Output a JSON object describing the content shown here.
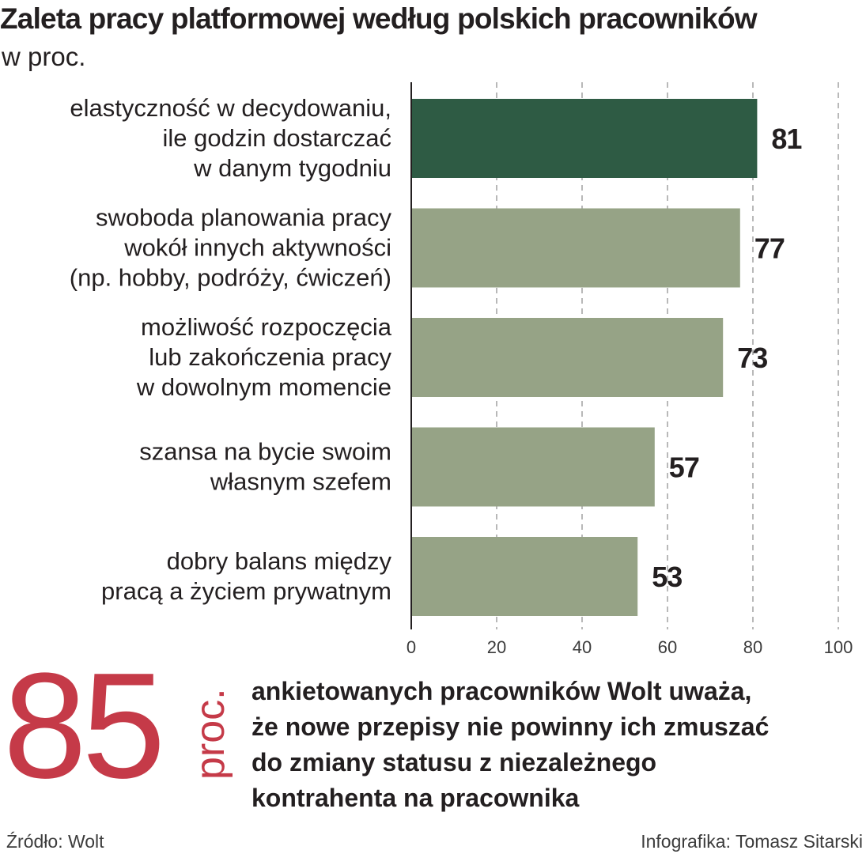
{
  "header": {
    "title": "Zaleta pracy platformowej według polskich pracowników",
    "subtitle": "w proc."
  },
  "chart_data": {
    "type": "bar",
    "orientation": "horizontal",
    "categories": [
      [
        "elastyczność w decydowaniu,",
        "ile godzin dostarczać",
        "w danym tygodniu"
      ],
      [
        "swoboda planowania pracy",
        "wokół innych aktywności",
        "(np. hobby, podróży, ćwiczeń)"
      ],
      [
        "możliwość rozpoczęcia",
        "lub zakończenia pracy",
        "w dowolnym momencie"
      ],
      [
        "szansa na bycie swoim",
        "własnym szefem"
      ],
      [
        "dobry balans między",
        "pracą a życiem prywatnym"
      ]
    ],
    "values": [
      81,
      77,
      73,
      57,
      53
    ],
    "xlim": [
      0,
      100
    ],
    "ticks": [
      0,
      20,
      40,
      60,
      80,
      100
    ],
    "grid": true,
    "colors": {
      "highlight": "#2e5b44",
      "default": "#96a386",
      "grid": "#8a8a8a",
      "axis": "#231f20"
    }
  },
  "highlight": {
    "number": "85",
    "unit": "proc.",
    "lines": [
      "ankietowanych pracowników Wolt uważa,",
      "że nowe przepisy nie powinny ich zmuszać",
      "do zmiany statusu z niezależnego",
      "kontrahenta na pracownika"
    ],
    "color": "#c53a48"
  },
  "footer": {
    "source": "Źródło: Wolt",
    "credit": "Infografika: Tomasz Sitarski"
  }
}
